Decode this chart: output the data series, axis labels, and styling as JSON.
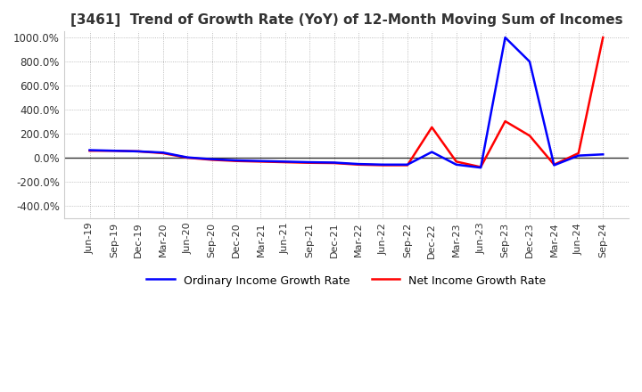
{
  "title": "[3461]  Trend of Growth Rate (YoY) of 12-Month Moving Sum of Incomes",
  "title_fontsize": 11,
  "background_color": "#ffffff",
  "plot_background_color": "#ffffff",
  "grid_color": "#aaaaaa",
  "ylim": [
    -500,
    1050
  ],
  "yticks": [
    -400,
    -200,
    0,
    200,
    400,
    600,
    800,
    1000
  ],
  "ytick_labels": [
    "-400.0%",
    "-200.0%",
    "0.0%",
    "200.0%",
    "400.0%",
    "600.0%",
    "800.0%",
    "1000.0%"
  ],
  "x_labels": [
    "Jun-19",
    "Sep-19",
    "Dec-19",
    "Mar-20",
    "Jun-20",
    "Sep-20",
    "Dec-20",
    "Mar-21",
    "Jun-21",
    "Sep-21",
    "Dec-21",
    "Mar-22",
    "Jun-22",
    "Sep-22",
    "Dec-22",
    "Mar-23",
    "Jun-23",
    "Sep-23",
    "Dec-23",
    "Mar-24",
    "Jun-24",
    "Sep-24"
  ],
  "ordinary_income": [
    65,
    60,
    55,
    45,
    5,
    -10,
    -20,
    -25,
    -30,
    -35,
    -38,
    -50,
    -55,
    -55,
    50,
    -55,
    -80,
    1000,
    800,
    -60,
    20,
    30
  ],
  "net_income": [
    60,
    60,
    55,
    40,
    2,
    -15,
    -25,
    -30,
    -35,
    -40,
    -42,
    -55,
    -60,
    -60,
    255,
    -30,
    -75,
    305,
    185,
    -55,
    40,
    1000
  ],
  "ordinary_color": "#0000ff",
  "net_color": "#ff0000",
  "legend_ordinary": "Ordinary Income Growth Rate",
  "legend_net": "Net Income Growth Rate",
  "line_width": 1.8
}
